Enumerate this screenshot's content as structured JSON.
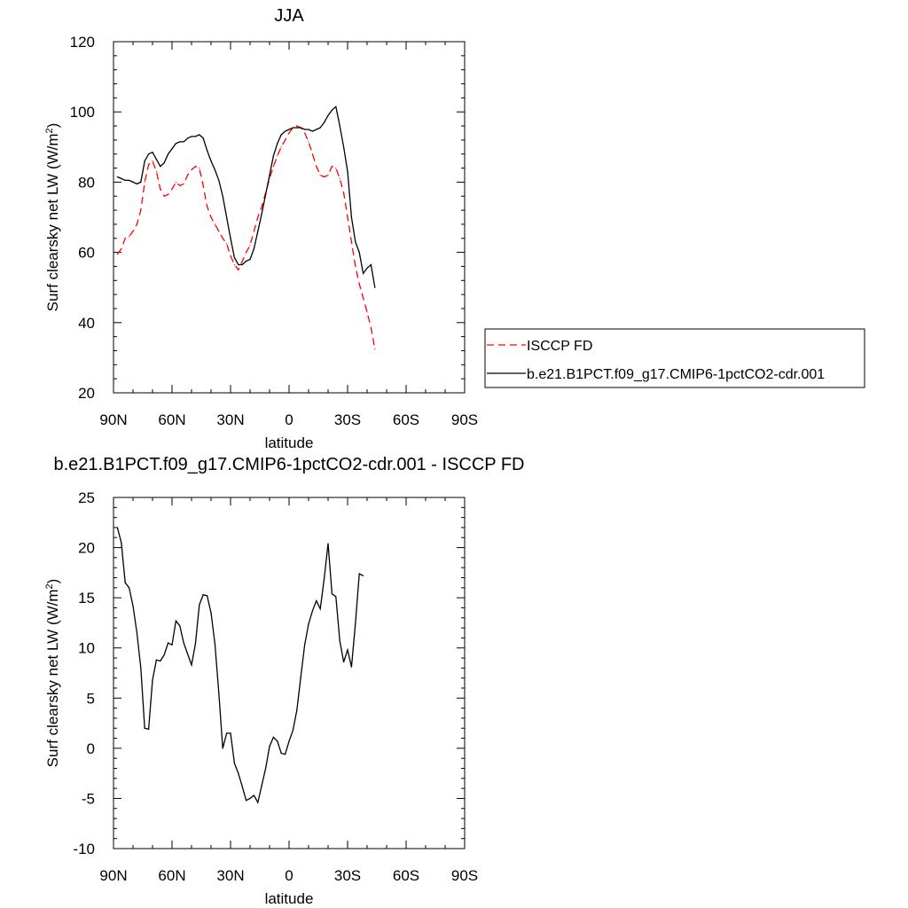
{
  "chart_data": [
    {
      "type": "line",
      "title": "JJA",
      "xlabel": "latitude",
      "ylabel": "Surf clearsky net LW (W/m",
      "ylabel_sup": "2",
      "ylabel_close": ")",
      "xlim": [
        90,
        -90
      ],
      "ylim": [
        20,
        120
      ],
      "xticks": [
        {
          "v": 90,
          "label": "90N"
        },
        {
          "v": 60,
          "label": "60N"
        },
        {
          "v": 30,
          "label": "30N"
        },
        {
          "v": 0,
          "label": "0"
        },
        {
          "v": -30,
          "label": "30S"
        },
        {
          "v": -60,
          "label": "60S"
        },
        {
          "v": -90,
          "label": "90S"
        }
      ],
      "yticks": [
        20,
        40,
        60,
        80,
        100,
        120
      ],
      "legend_position": "right",
      "series": [
        {
          "name": "ISCCP FD",
          "color": "#ff0000",
          "dash": "dashed",
          "points": [
            [
              88,
              59.5
            ],
            [
              86,
              61
            ],
            [
              84,
              64
            ],
            [
              82,
              64.5
            ],
            [
              80,
              66
            ],
            [
              78,
              68
            ],
            [
              76,
              72
            ],
            [
              74,
              80
            ],
            [
              72,
              85
            ],
            [
              70,
              86
            ],
            [
              68,
              83
            ],
            [
              66,
              78
            ],
            [
              64,
              76
            ],
            [
              62,
              76.5
            ],
            [
              60,
              78
            ],
            [
              58,
              80
            ],
            [
              56,
              79
            ],
            [
              54,
              79.5
            ],
            [
              52,
              82
            ],
            [
              50,
              83.5
            ],
            [
              48,
              84.5
            ],
            [
              46,
              84
            ],
            [
              44,
              79
            ],
            [
              42,
              73
            ],
            [
              40,
              70
            ],
            [
              38,
              68
            ],
            [
              36,
              66
            ],
            [
              34,
              64
            ],
            [
              32,
              62.5
            ],
            [
              30,
              59
            ],
            [
              28,
              56.5
            ],
            [
              26,
              55
            ],
            [
              24,
              57.5
            ],
            [
              22,
              60
            ],
            [
              20,
              62
            ],
            [
              18,
              66
            ],
            [
              16,
              70
            ],
            [
              14,
              73
            ],
            [
              12,
              77
            ],
            [
              10,
              81
            ],
            [
              8,
              84.5
            ],
            [
              6,
              87.5
            ],
            [
              4,
              90
            ],
            [
              2,
              92
            ],
            [
              0,
              94
            ],
            [
              -2,
              95.5
            ],
            [
              -4,
              96
            ],
            [
              -6,
              95.5
            ],
            [
              -8,
              94
            ],
            [
              -10,
              91.5
            ],
            [
              -12,
              88
            ],
            [
              -14,
              84.5
            ],
            [
              -16,
              82
            ],
            [
              -18,
              81.5
            ],
            [
              -20,
              82
            ],
            [
              -22,
              84.5
            ],
            [
              -24,
              84
            ],
            [
              -26,
              81
            ],
            [
              -28,
              77
            ],
            [
              -30,
              70
            ],
            [
              -32,
              63
            ],
            [
              -34,
              56
            ],
            [
              -36,
              51
            ],
            [
              -38,
              47
            ],
            [
              -40,
              43
            ],
            [
              -42,
              38.5
            ],
            [
              -44,
              32.5
            ]
          ]
        },
        {
          "name": "b.e21.B1PCT.f09_g17.CMIP6-1pctCO2-cdr.001",
          "color": "#000000",
          "dash": "solid",
          "points": [
            [
              88,
              81.5
            ],
            [
              86,
              81
            ],
            [
              84,
              80.5
            ],
            [
              82,
              80.5
            ],
            [
              80,
              80
            ],
            [
              78,
              79.5
            ],
            [
              76,
              80
            ],
            [
              74,
              86
            ],
            [
              72,
              88
            ],
            [
              70,
              88.5
            ],
            [
              68,
              86.5
            ],
            [
              66,
              84.5
            ],
            [
              64,
              85.5
            ],
            [
              62,
              88
            ],
            [
              60,
              89.5
            ],
            [
              58,
              91
            ],
            [
              56,
              91.5
            ],
            [
              54,
              91.5
            ],
            [
              52,
              92.5
            ],
            [
              50,
              93
            ],
            [
              48,
              93
            ],
            [
              46,
              93.5
            ],
            [
              44,
              92.5
            ],
            [
              42,
              89
            ],
            [
              40,
              86
            ],
            [
              38,
              83.5
            ],
            [
              36,
              80.5
            ],
            [
              34,
              76
            ],
            [
              32,
              70
            ],
            [
              30,
              64
            ],
            [
              28,
              58.5
            ],
            [
              26,
              56.5
            ],
            [
              24,
              56.5
            ],
            [
              22,
              57.5
            ],
            [
              20,
              58
            ],
            [
              18,
              61
            ],
            [
              16,
              66
            ],
            [
              14,
              71
            ],
            [
              12,
              76.5
            ],
            [
              10,
              82
            ],
            [
              8,
              87.5
            ],
            [
              6,
              91
            ],
            [
              4,
              93.5
            ],
            [
              2,
              94.5
            ],
            [
              0,
              95
            ],
            [
              -2,
              95.5
            ],
            [
              -4,
              95.5
            ],
            [
              -6,
              95.5
            ],
            [
              -8,
              95
            ],
            [
              -10,
              95
            ],
            [
              -12,
              94.5
            ],
            [
              -14,
              95
            ],
            [
              -16,
              95.5
            ],
            [
              -18,
              97
            ],
            [
              -20,
              99
            ],
            [
              -22,
              100.5
            ],
            [
              -24,
              101.5
            ],
            [
              -26,
              96
            ],
            [
              -28,
              90
            ],
            [
              -30,
              83
            ],
            [
              -32,
              70
            ],
            [
              -34,
              63
            ],
            [
              -36,
              60
            ],
            [
              -38,
              54
            ],
            [
              -40,
              55.5
            ],
            [
              -42,
              56.5
            ],
            [
              -44,
              50
            ]
          ]
        }
      ]
    },
    {
      "type": "line",
      "title": "b.e21.B1PCT.f09_g17.CMIP6-1pctCO2-cdr.001 - ISCCP FD",
      "xlabel": "latitude",
      "ylabel": "Surf clearsky net LW (W/m",
      "ylabel_sup": "2",
      "ylabel_close": ")",
      "xlim": [
        90,
        -90
      ],
      "ylim": [
        -10,
        25
      ],
      "xticks": [
        {
          "v": 90,
          "label": "90N"
        },
        {
          "v": 60,
          "label": "60N"
        },
        {
          "v": 30,
          "label": "30N"
        },
        {
          "v": 0,
          "label": "0"
        },
        {
          "v": -30,
          "label": "30S"
        },
        {
          "v": -60,
          "label": "60S"
        },
        {
          "v": -90,
          "label": "90S"
        }
      ],
      "yticks": [
        -10,
        -5,
        0,
        5,
        10,
        15,
        20,
        25
      ],
      "series": [
        {
          "color": "#000000",
          "dash": "solid",
          "points": [
            [
              88,
              22
            ],
            [
              86,
              20.5
            ],
            [
              84,
              16.5
            ],
            [
              82,
              16
            ],
            [
              80,
              14.2
            ],
            [
              78,
              11.5
            ],
            [
              76,
              8
            ],
            [
              74,
              2
            ],
            [
              72,
              1.9
            ],
            [
              70,
              6.8
            ],
            [
              68,
              8.8
            ],
            [
              66,
              8.7
            ],
            [
              64,
              9.3
            ],
            [
              62,
              10.5
            ],
            [
              60,
              10.3
            ],
            [
              58,
              12.7
            ],
            [
              56,
              12.2
            ],
            [
              54,
              10.5
            ],
            [
              52,
              9.4
            ],
            [
              50,
              8.3
            ],
            [
              48,
              10.4
            ],
            [
              46,
              14.3
            ],
            [
              44,
              15.3
            ],
            [
              42,
              15.2
            ],
            [
              40,
              13.5
            ],
            [
              38,
              10.4
            ],
            [
              36,
              5.5
            ],
            [
              34,
              0
            ],
            [
              32,
              1.5
            ],
            [
              30,
              1.5
            ],
            [
              28,
              -1.5
            ],
            [
              26,
              -2.5
            ],
            [
              24,
              -3.8
            ],
            [
              22,
              -5.2
            ],
            [
              20,
              -5
            ],
            [
              18,
              -4.7
            ],
            [
              16,
              -5.4
            ],
            [
              14,
              -3.7
            ],
            [
              12,
              -2
            ],
            [
              10,
              0.2
            ],
            [
              8,
              1.1
            ],
            [
              6,
              0.7
            ],
            [
              4,
              -0.5
            ],
            [
              2,
              -0.6
            ],
            [
              0,
              0.7
            ],
            [
              -2,
              1.8
            ],
            [
              -4,
              3.8
            ],
            [
              -6,
              7.1
            ],
            [
              -8,
              10.3
            ],
            [
              -10,
              12.4
            ],
            [
              -12,
              13.7
            ],
            [
              -14,
              14.7
            ],
            [
              -16,
              13.9
            ],
            [
              -18,
              16.9
            ],
            [
              -20,
              20.4
            ],
            [
              -22,
              15.4
            ],
            [
              -24,
              15.1
            ],
            [
              -26,
              10.7
            ],
            [
              -28,
              8.6
            ],
            [
              -30,
              9.8
            ],
            [
              -32,
              8.1
            ],
            [
              -34,
              12.4
            ],
            [
              -36,
              17.4
            ],
            [
              -38,
              17.2
            ]
          ]
        }
      ]
    }
  ]
}
